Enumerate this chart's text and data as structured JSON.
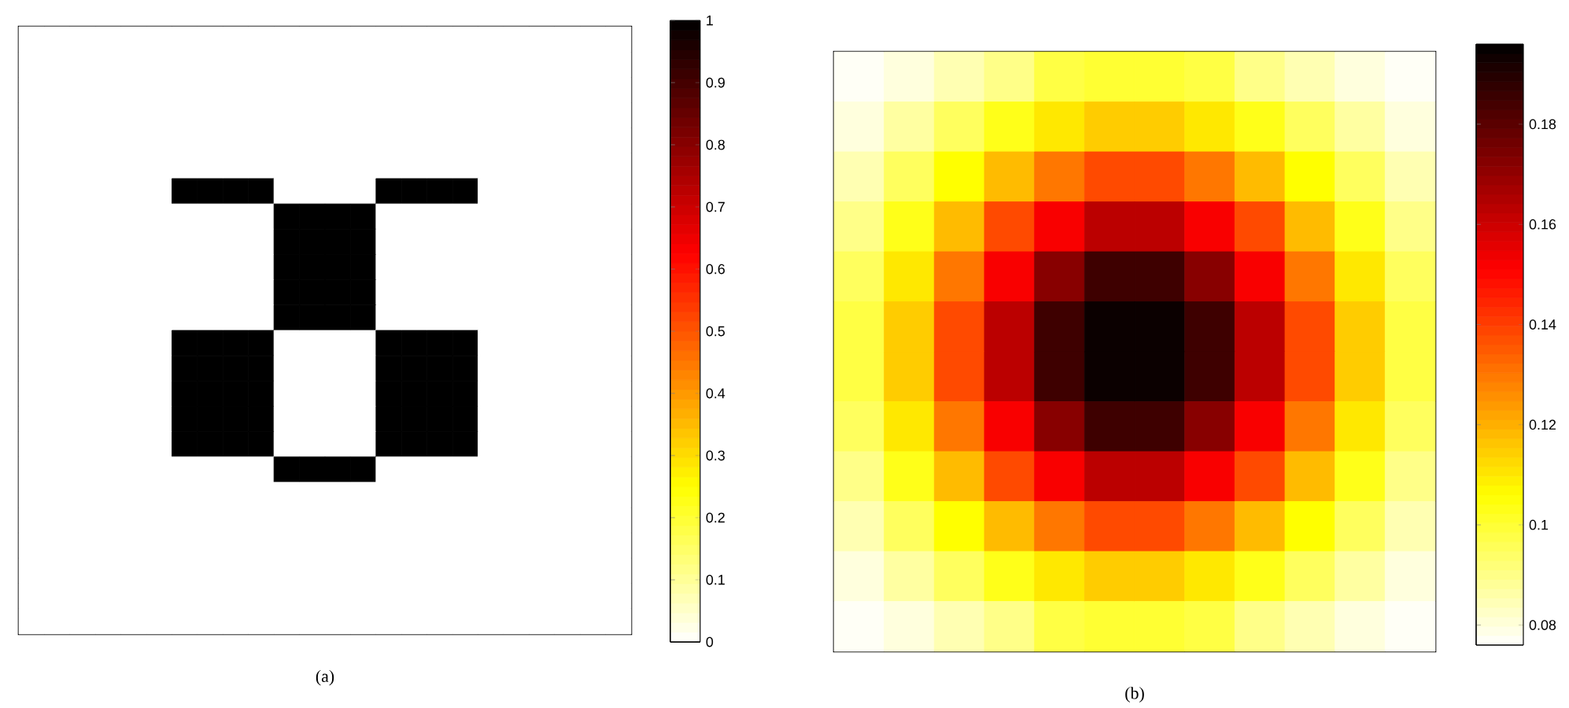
{
  "chart_data": [
    {
      "type": "heatmap",
      "annotations": [
        "(a)"
      ],
      "categories": [
        null,
        null,
        null,
        null,
        null,
        null,
        null,
        null,
        null,
        null,
        null,
        null,
        null,
        null,
        null,
        null,
        null,
        null,
        null,
        null,
        null,
        null,
        null,
        null
      ],
      "y_categories": [
        null,
        null,
        null,
        null,
        null,
        null,
        null,
        null,
        null,
        null,
        null,
        null,
        null,
        null,
        null,
        null,
        null,
        null,
        null,
        null,
        null,
        null,
        null,
        null
      ],
      "cells": [
        [
          0,
          0,
          0,
          0,
          0,
          0,
          0,
          0,
          0,
          0,
          0,
          0,
          0,
          0,
          0,
          0,
          0,
          0,
          0,
          0,
          0,
          0,
          0,
          0
        ],
        [
          0,
          0,
          0,
          0,
          0,
          0,
          0,
          0,
          0,
          0,
          0,
          0,
          0,
          0,
          0,
          0,
          0,
          0,
          0,
          0,
          0,
          0,
          0,
          0
        ],
        [
          0,
          0,
          0,
          0,
          0,
          0,
          0,
          0,
          0,
          0,
          0,
          0,
          0,
          0,
          0,
          0,
          0,
          0,
          0,
          0,
          0,
          0,
          0,
          0
        ],
        [
          0,
          0,
          0,
          0,
          0,
          0,
          0,
          0,
          0,
          0,
          0,
          0,
          0,
          0,
          0,
          0,
          0,
          0,
          0,
          0,
          0,
          0,
          0,
          0
        ],
        [
          0,
          0,
          0,
          0,
          0,
          0,
          0,
          0,
          0,
          0,
          0,
          0,
          0,
          0,
          0,
          0,
          0,
          0,
          0,
          0,
          0,
          0,
          0,
          0
        ],
        [
          0,
          0,
          0,
          0,
          0,
          0,
          0,
          0,
          0,
          0,
          0,
          0,
          0,
          0,
          0,
          0,
          0,
          0,
          0,
          0,
          0,
          0,
          0,
          0
        ],
        [
          0,
          0,
          0,
          0,
          0,
          0,
          1,
          1,
          1,
          1,
          0,
          0,
          0,
          0,
          1,
          1,
          1,
          1,
          0,
          0,
          0,
          0,
          0,
          0
        ],
        [
          0,
          0,
          0,
          0,
          0,
          0,
          0,
          0,
          0,
          0,
          1,
          1,
          1,
          1,
          0,
          0,
          0,
          0,
          0,
          0,
          0,
          0,
          0,
          0
        ],
        [
          0,
          0,
          0,
          0,
          0,
          0,
          0,
          0,
          0,
          0,
          1,
          1,
          1,
          1,
          0,
          0,
          0,
          0,
          0,
          0,
          0,
          0,
          0,
          0
        ],
        [
          0,
          0,
          0,
          0,
          0,
          0,
          0,
          0,
          0,
          0,
          1,
          1,
          1,
          1,
          0,
          0,
          0,
          0,
          0,
          0,
          0,
          0,
          0,
          0
        ],
        [
          0,
          0,
          0,
          0,
          0,
          0,
          0,
          0,
          0,
          0,
          1,
          1,
          1,
          1,
          0,
          0,
          0,
          0,
          0,
          0,
          0,
          0,
          0,
          0
        ],
        [
          0,
          0,
          0,
          0,
          0,
          0,
          0,
          0,
          0,
          0,
          1,
          1,
          1,
          1,
          0,
          0,
          0,
          0,
          0,
          0,
          0,
          0,
          0,
          0
        ],
        [
          0,
          0,
          0,
          0,
          0,
          0,
          1,
          1,
          1,
          1,
          0,
          0,
          0,
          0,
          1,
          1,
          1,
          1,
          0,
          0,
          0,
          0,
          0,
          0
        ],
        [
          0,
          0,
          0,
          0,
          0,
          0,
          1,
          1,
          1,
          1,
          0,
          0,
          0,
          0,
          1,
          1,
          1,
          1,
          0,
          0,
          0,
          0,
          0,
          0
        ],
        [
          0,
          0,
          0,
          0,
          0,
          0,
          1,
          1,
          1,
          1,
          0,
          0,
          0,
          0,
          1,
          1,
          1,
          1,
          0,
          0,
          0,
          0,
          0,
          0
        ],
        [
          0,
          0,
          0,
          0,
          0,
          0,
          1,
          1,
          1,
          1,
          0,
          0,
          0,
          0,
          1,
          1,
          1,
          1,
          0,
          0,
          0,
          0,
          0,
          0
        ],
        [
          0,
          0,
          0,
          0,
          0,
          0,
          1,
          1,
          1,
          1,
          0,
          0,
          0,
          0,
          1,
          1,
          1,
          1,
          0,
          0,
          0,
          0,
          0,
          0
        ],
        [
          0,
          0,
          0,
          0,
          0,
          0,
          0,
          0,
          0,
          0,
          1,
          1,
          1,
          1,
          0,
          0,
          0,
          0,
          0,
          0,
          0,
          0,
          0,
          0
        ],
        [
          0,
          0,
          0,
          0,
          0,
          0,
          0,
          0,
          0,
          0,
          0,
          0,
          0,
          0,
          0,
          0,
          0,
          0,
          0,
          0,
          0,
          0,
          0,
          0
        ],
        [
          0,
          0,
          0,
          0,
          0,
          0,
          0,
          0,
          0,
          0,
          0,
          0,
          0,
          0,
          0,
          0,
          0,
          0,
          0,
          0,
          0,
          0,
          0,
          0
        ],
        [
          0,
          0,
          0,
          0,
          0,
          0,
          0,
          0,
          0,
          0,
          0,
          0,
          0,
          0,
          0,
          0,
          0,
          0,
          0,
          0,
          0,
          0,
          0,
          0
        ],
        [
          0,
          0,
          0,
          0,
          0,
          0,
          0,
          0,
          0,
          0,
          0,
          0,
          0,
          0,
          0,
          0,
          0,
          0,
          0,
          0,
          0,
          0,
          0,
          0
        ],
        [
          0,
          0,
          0,
          0,
          0,
          0,
          0,
          0,
          0,
          0,
          0,
          0,
          0,
          0,
          0,
          0,
          0,
          0,
          0,
          0,
          0,
          0,
          0,
          0
        ],
        [
          0,
          0,
          0,
          0,
          0,
          0,
          0,
          0,
          0,
          0,
          0,
          0,
          0,
          0,
          0,
          0,
          0,
          0,
          0,
          0,
          0,
          0,
          0,
          0
        ]
      ],
      "clim": [
        0,
        1
      ],
      "cticks": [
        0,
        0.1,
        0.2,
        0.3,
        0.4,
        0.5,
        0.6,
        0.7,
        0.8,
        0.9,
        1
      ]
    },
    {
      "type": "heatmap",
      "annotations": [
        "(b)"
      ],
      "categories": [
        null,
        null,
        null,
        null,
        null,
        null,
        null,
        null,
        null,
        null,
        null,
        null
      ],
      "y_categories": [
        null,
        null,
        null,
        null,
        null,
        null,
        null,
        null,
        null,
        null,
        null,
        null
      ],
      "cells": [
        [
          0.077,
          0.08,
          0.085,
          0.09,
          0.098,
          0.1,
          0.1,
          0.098,
          0.09,
          0.085,
          0.08,
          0.077
        ],
        [
          0.08,
          0.087,
          0.095,
          0.103,
          0.11,
          0.115,
          0.115,
          0.11,
          0.103,
          0.095,
          0.087,
          0.08
        ],
        [
          0.085,
          0.095,
          0.106,
          0.118,
          0.13,
          0.138,
          0.138,
          0.13,
          0.118,
          0.106,
          0.095,
          0.085
        ],
        [
          0.09,
          0.103,
          0.118,
          0.138,
          0.152,
          0.163,
          0.163,
          0.152,
          0.138,
          0.118,
          0.103,
          0.09
        ],
        [
          0.095,
          0.11,
          0.13,
          0.152,
          0.172,
          0.185,
          0.185,
          0.172,
          0.152,
          0.13,
          0.11,
          0.095
        ],
        [
          0.098,
          0.115,
          0.138,
          0.163,
          0.185,
          0.194,
          0.194,
          0.185,
          0.163,
          0.138,
          0.115,
          0.098
        ],
        [
          0.098,
          0.115,
          0.138,
          0.163,
          0.185,
          0.194,
          0.194,
          0.185,
          0.163,
          0.138,
          0.115,
          0.098
        ],
        [
          0.095,
          0.11,
          0.13,
          0.152,
          0.172,
          0.185,
          0.185,
          0.172,
          0.152,
          0.13,
          0.11,
          0.095
        ],
        [
          0.09,
          0.103,
          0.118,
          0.138,
          0.152,
          0.163,
          0.163,
          0.152,
          0.138,
          0.118,
          0.103,
          0.09
        ],
        [
          0.085,
          0.095,
          0.106,
          0.118,
          0.13,
          0.138,
          0.138,
          0.13,
          0.118,
          0.106,
          0.095,
          0.085
        ],
        [
          0.08,
          0.087,
          0.095,
          0.103,
          0.11,
          0.115,
          0.115,
          0.11,
          0.103,
          0.095,
          0.087,
          0.08
        ],
        [
          0.077,
          0.08,
          0.085,
          0.09,
          0.098,
          0.1,
          0.1,
          0.098,
          0.09,
          0.085,
          0.08,
          0.077
        ]
      ],
      "clim": [
        0.076,
        0.196
      ],
      "cticks": [
        0.08,
        0.1,
        0.12,
        0.14,
        0.16,
        0.18
      ]
    }
  ]
}
